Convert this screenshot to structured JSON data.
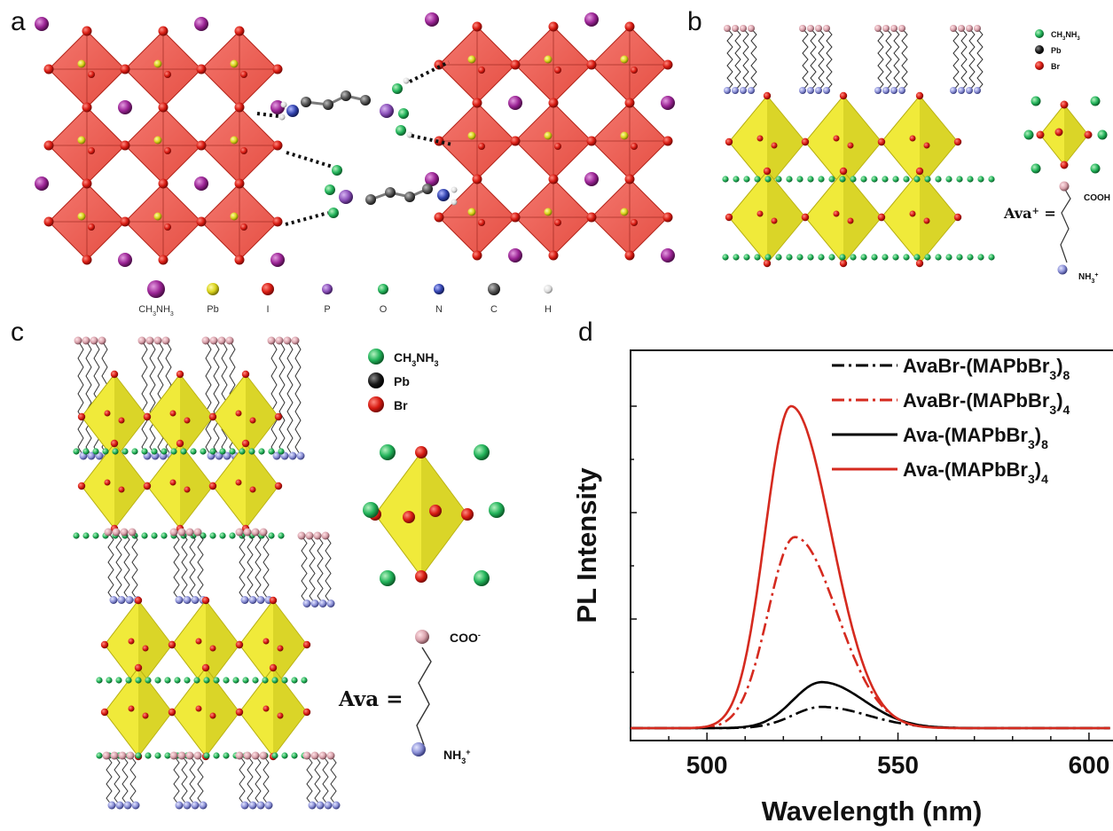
{
  "panels": {
    "a": {
      "label": "a",
      "legend": [
        {
          "sym": "CH3NH3",
          "base": "CH",
          "sub1": "3",
          "mid": "NH",
          "sub2": "3",
          "color": "#a0269a"
        },
        {
          "sym": "Pb",
          "color": "#d8d21a"
        },
        {
          "sym": "I",
          "color": "#e01c12"
        },
        {
          "sym": "P",
          "color": "#8a4fb8"
        },
        {
          "sym": "O",
          "color": "#2cb84a"
        },
        {
          "sym": "N",
          "color": "#2b3fa8"
        },
        {
          "sym": "C",
          "color": "#555555"
        },
        {
          "sym": "H",
          "color": "#e6e6e6"
        }
      ]
    },
    "b": {
      "label": "b",
      "legend": [
        {
          "base": "CH",
          "sub1": "3",
          "mid": "NH",
          "sub2": "3",
          "color": "#22b35a"
        },
        {
          "sym": "Pb",
          "color": "#1a1a1a"
        },
        {
          "sym": "Br",
          "color": "#c8201c"
        }
      ],
      "ava_label": "Ava",
      "ava_sup": "+",
      "ava_eq": "=",
      "top_group": "COOH",
      "bottom_group": "NH",
      "bottom_sub": "3",
      "bottom_sup": "+"
    },
    "c": {
      "label": "c",
      "legend": [
        {
          "base": "CH",
          "sub1": "3",
          "mid": "NH",
          "sub2": "3",
          "color": "#22b35a"
        },
        {
          "sym": "Pb",
          "color": "#1a1a1a"
        },
        {
          "sym": "Br",
          "color": "#c8201c"
        }
      ],
      "ava_label": "Ava",
      "ava_eq": "=",
      "top_group": "COO",
      "top_sup": "-",
      "bottom_group": "NH",
      "bottom_sub": "3",
      "bottom_sup": "+"
    },
    "d": {
      "label": "d"
    }
  },
  "chart_data": {
    "type": "line",
    "title": "",
    "xlabel": "Wavelength (nm)",
    "ylabel": "PL Intensity",
    "xlim": [
      480,
      610
    ],
    "ylim": [
      0,
      100
    ],
    "x_ticks": [
      500,
      550,
      600
    ],
    "y_ticks_labeled": false,
    "grid": false,
    "legend_position": "top-right",
    "series": [
      {
        "name": "AvaBr-(MAPbBr3)8",
        "base": "AvaBr-(MAPbBr",
        "sub": "3",
        "suffix": ")",
        "sub2": "8",
        "color": "#000000",
        "style": "dashdot",
        "peak_x": 530,
        "peak_y": 6,
        "sigma_left": 7.5,
        "sigma_right": 12
      },
      {
        "name": "AvaBr-(MAPbBr3)4",
        "base": "AvaBr-(MAPbBr",
        "sub": "3",
        "suffix": ")",
        "sub2": "4",
        "color": "#d52a1f",
        "style": "dashdot",
        "peak_x": 523,
        "peak_y": 54,
        "sigma_left": 7,
        "sigma_right": 11
      },
      {
        "name": "Ava-(MAPbBr3)8",
        "base": "Ava-(MAPbBr",
        "sub": "3",
        "suffix": ")",
        "sub2": "8",
        "color": "#000000",
        "style": "solid",
        "peak_x": 530,
        "peak_y": 13,
        "sigma_left": 7.5,
        "sigma_right": 11
      },
      {
        "name": "Ava-(MAPbBr3)4",
        "base": "Ava-(MAPbBr",
        "sub": "3",
        "suffix": ")",
        "sub2": "4",
        "color": "#d52a1f",
        "style": "solid",
        "peak_x": 522,
        "peak_y": 91,
        "sigma_left": 6.8,
        "sigma_right": 10.5
      }
    ]
  }
}
